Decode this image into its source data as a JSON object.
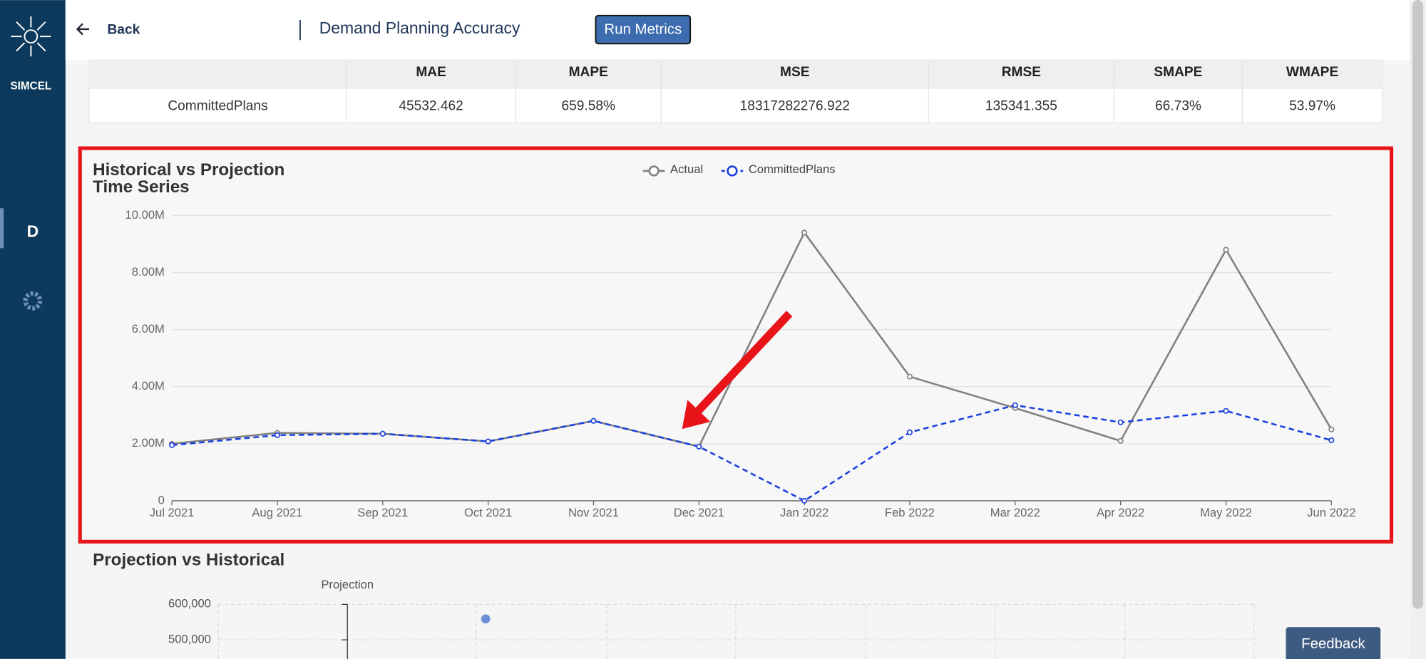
{
  "sidebar": {
    "logo": "SIMCEL",
    "nav": "D"
  },
  "header": {
    "back": "Back",
    "title": "Demand Planning Accuracy",
    "button": "Run Metrics"
  },
  "table": {
    "columns": [
      "MAE",
      "MAPE",
      "MSE",
      "RMSE",
      "SMAPE",
      "WMAPE"
    ],
    "rows": [
      {
        "name": "CommittedPlans",
        "cells": [
          "45532.462",
          "659.58%",
          "18317282276.922",
          "135341.355",
          "66.73%",
          "53.97%"
        ]
      }
    ]
  },
  "chart_data": [
    {
      "type": "line",
      "title": "Historical vs Projection Time Series",
      "categories": [
        "Jul 2021",
        "Aug 2021",
        "Sep 2021",
        "Oct 2021",
        "Nov 2021",
        "Dec 2021",
        "Jan 2022",
        "Feb 2022",
        "Mar 2022",
        "Apr 2022",
        "May 2022",
        "Jun 2022"
      ],
      "series": [
        {
          "name": "Actual",
          "color": "#808080",
          "dashed": false,
          "values": [
            2000000,
            2380000,
            2350000,
            2080000,
            2800000,
            1900000,
            9400000,
            4350000,
            3250000,
            2100000,
            8800000,
            2500000
          ]
        },
        {
          "name": "CommittedPlans",
          "color": "#1a3fe0",
          "dashed": true,
          "values": [
            1950000,
            2300000,
            2350000,
            2080000,
            2800000,
            1900000,
            0,
            2400000,
            3350000,
            2750000,
            3150000,
            2120000
          ]
        }
      ],
      "ylim": [
        0,
        10000000
      ],
      "yticks": [
        0,
        {
          "value": 2000000,
          "label": "2.00M"
        },
        {
          "value": 4000000,
          "label": "4.00M"
        },
        {
          "value": 6000000,
          "label": "6.00M"
        },
        {
          "value": 8000000,
          "label": "8.00M"
        },
        {
          "value": 10000000,
          "label": "10.00M"
        }
      ],
      "grid": true,
      "legend": "top"
    },
    {
      "type": "scatter",
      "title": "Projection vs Historical",
      "y_label": "Projection",
      "color": "#6f8fd8",
      "values": [
        559000
      ],
      "yticks": [
        {
          "value": 600000,
          "label": "600,000"
        },
        {
          "value": 500000,
          "label": "500,000"
        }
      ]
    }
  ],
  "feedback": "Feedback"
}
